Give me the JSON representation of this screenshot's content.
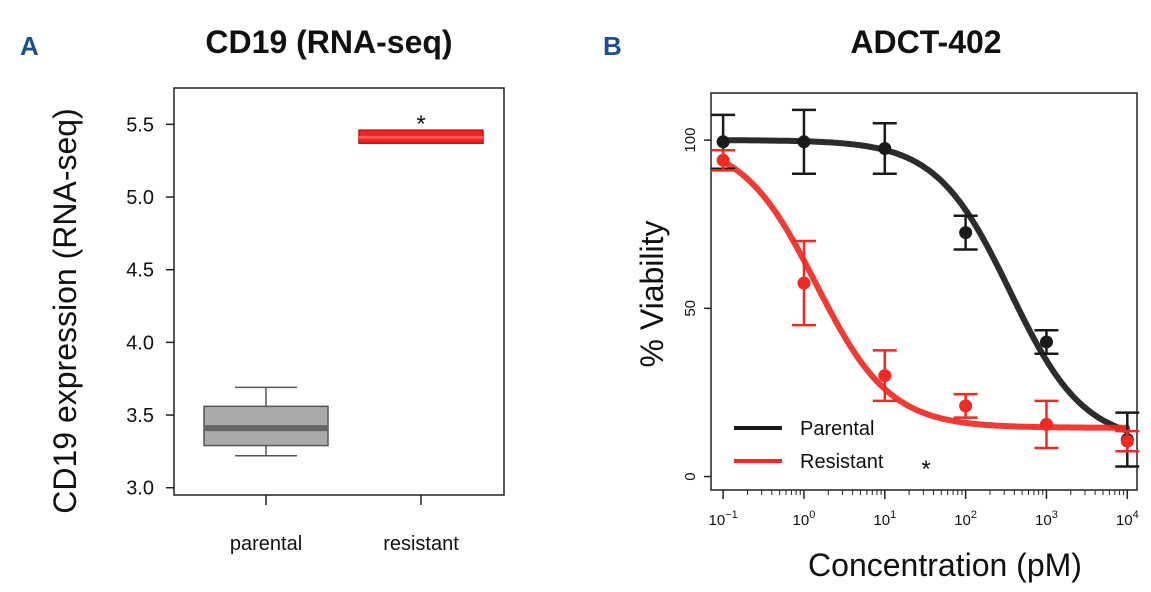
{
  "chart_data": [
    {
      "panel": "A",
      "type": "box",
      "title": "CD19 (RNA-seq)",
      "ylabel": "CD19 expression (RNA-seq)",
      "xlabel": "",
      "ylim": [
        2.95,
        5.75
      ],
      "yticks": [
        "3.0",
        "3.5",
        "4.0",
        "4.5",
        "5.0",
        "5.5"
      ],
      "grid": false,
      "categories": [
        "parental",
        "resistant"
      ],
      "boxes": [
        {
          "name": "parental",
          "min": 3.22,
          "q1": 3.29,
          "median": 3.41,
          "q3": 3.56,
          "max": 3.69,
          "color": "#aaaaaa",
          "median_color": "#666666"
        },
        {
          "name": "resistant",
          "min": 5.37,
          "q1": 5.37,
          "median": 5.41,
          "q3": 5.46,
          "max": 5.46,
          "color": "#ee2222",
          "median_color": "#ff5555"
        }
      ],
      "annotations": [
        {
          "text": "*",
          "category": "resistant",
          "y": 5.53
        }
      ]
    },
    {
      "panel": "B",
      "type": "line",
      "title": "ADCT-402",
      "xlabel": "Concentration (pM)",
      "ylabel": "% Viability",
      "xscale": "log10",
      "xlim": [
        -1.15,
        4.12
      ],
      "ylim": [
        -4,
        114
      ],
      "xticks": [
        {
          "value": -1,
          "base": "10",
          "exp": "−1"
        },
        {
          "value": 0,
          "base": "10",
          "exp": "0"
        },
        {
          "value": 1,
          "base": "10",
          "exp": "1"
        },
        {
          "value": 2,
          "base": "10",
          "exp": "2"
        },
        {
          "value": 3,
          "base": "10",
          "exp": "3"
        },
        {
          "value": 4,
          "base": "10",
          "exp": "4"
        }
      ],
      "yticks": [
        "0",
        "50",
        "100"
      ],
      "grid": false,
      "legend_position": "bottom-left",
      "series": [
        {
          "name": "Parental",
          "color": "#1a1a1a",
          "points": [
            {
              "x": -1,
              "y": 99.5,
              "err": 8
            },
            {
              "x": 0,
              "y": 99.5,
              "err": 9.5
            },
            {
              "x": 1,
              "y": 97.5,
              "err": 7.5
            },
            {
              "x": 2,
              "y": 72.5,
              "err": 5
            },
            {
              "x": 3,
              "y": 40,
              "err": 3.5
            },
            {
              "x": 4,
              "y": 11,
              "err": 8
            }
          ],
          "fit": {
            "top": 100,
            "bottom": 10,
            "log_ec50": 2.55,
            "hill": 0.95
          }
        },
        {
          "name": "Resistant",
          "color": "#ee2a24",
          "points": [
            {
              "x": -1,
              "y": 94,
              "err": 3
            },
            {
              "x": 0,
              "y": 57.5,
              "err": 12.5
            },
            {
              "x": 1,
              "y": 30,
              "err": 7.5
            },
            {
              "x": 2,
              "y": 21,
              "err": 3.5
            },
            {
              "x": 3,
              "y": 15.5,
              "err": 7
            },
            {
              "x": 4,
              "y": 10.5,
              "err": 3
            }
          ],
          "fit": {
            "top": 100,
            "bottom": 14.5,
            "log_ec50": 0.15,
            "hill": 0.95
          }
        }
      ],
      "annotations": [
        {
          "text": "*",
          "near": "Resistant legend"
        }
      ]
    }
  ]
}
